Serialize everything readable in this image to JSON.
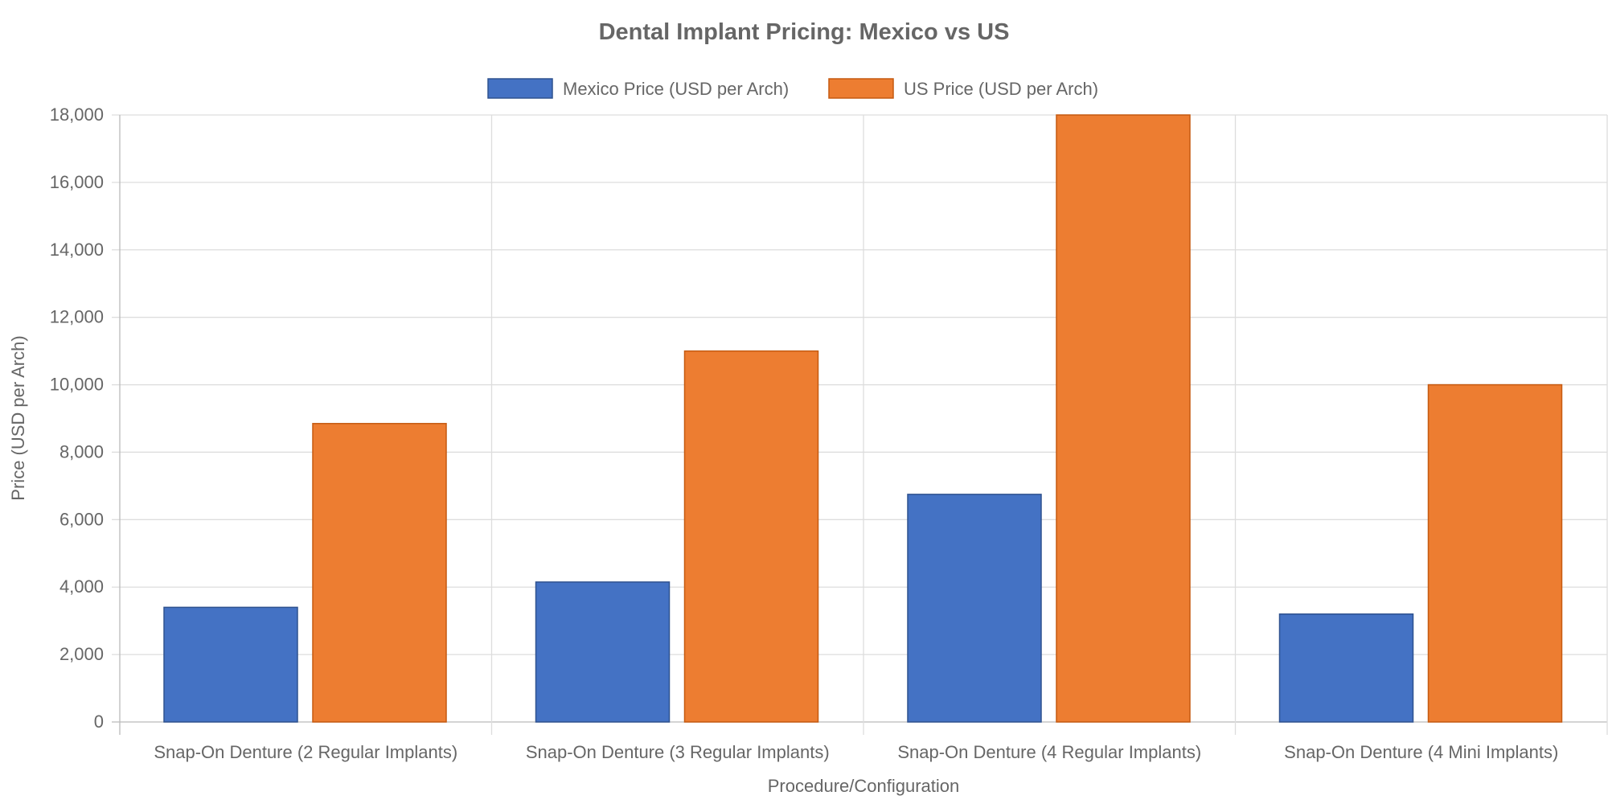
{
  "chart_data": {
    "type": "bar",
    "title": "Dental Implant Pricing: Mexico vs US",
    "xlabel": "Procedure/Configuration",
    "ylabel": "Price (USD per Arch)",
    "ylim": [
      0,
      18000
    ],
    "yticks": [
      0,
      2000,
      4000,
      6000,
      8000,
      10000,
      12000,
      14000,
      16000,
      18000
    ],
    "ytick_labels": [
      "0",
      "2,000",
      "4,000",
      "6,000",
      "8,000",
      "10,000",
      "12,000",
      "14,000",
      "16,000",
      "18,000"
    ],
    "grid": true,
    "legend_position": "top",
    "categories": [
      "Snap-On Denture (2 Regular Implants)",
      "Snap-On Denture (3 Regular Implants)",
      "Snap-On Denture (4 Regular Implants)",
      "Snap-On Denture (4 Mini Implants)"
    ],
    "series": [
      {
        "name": "Mexico Price (USD per Arch)",
        "values": [
          3400,
          4150,
          6750,
          3200
        ],
        "color": "#4472C4",
        "border": "#2F528F"
      },
      {
        "name": "US Price (USD per Arch)",
        "values": [
          8850,
          11000,
          18000,
          10000
        ],
        "color": "#ED7D31",
        "border": "#C55A11"
      }
    ]
  }
}
